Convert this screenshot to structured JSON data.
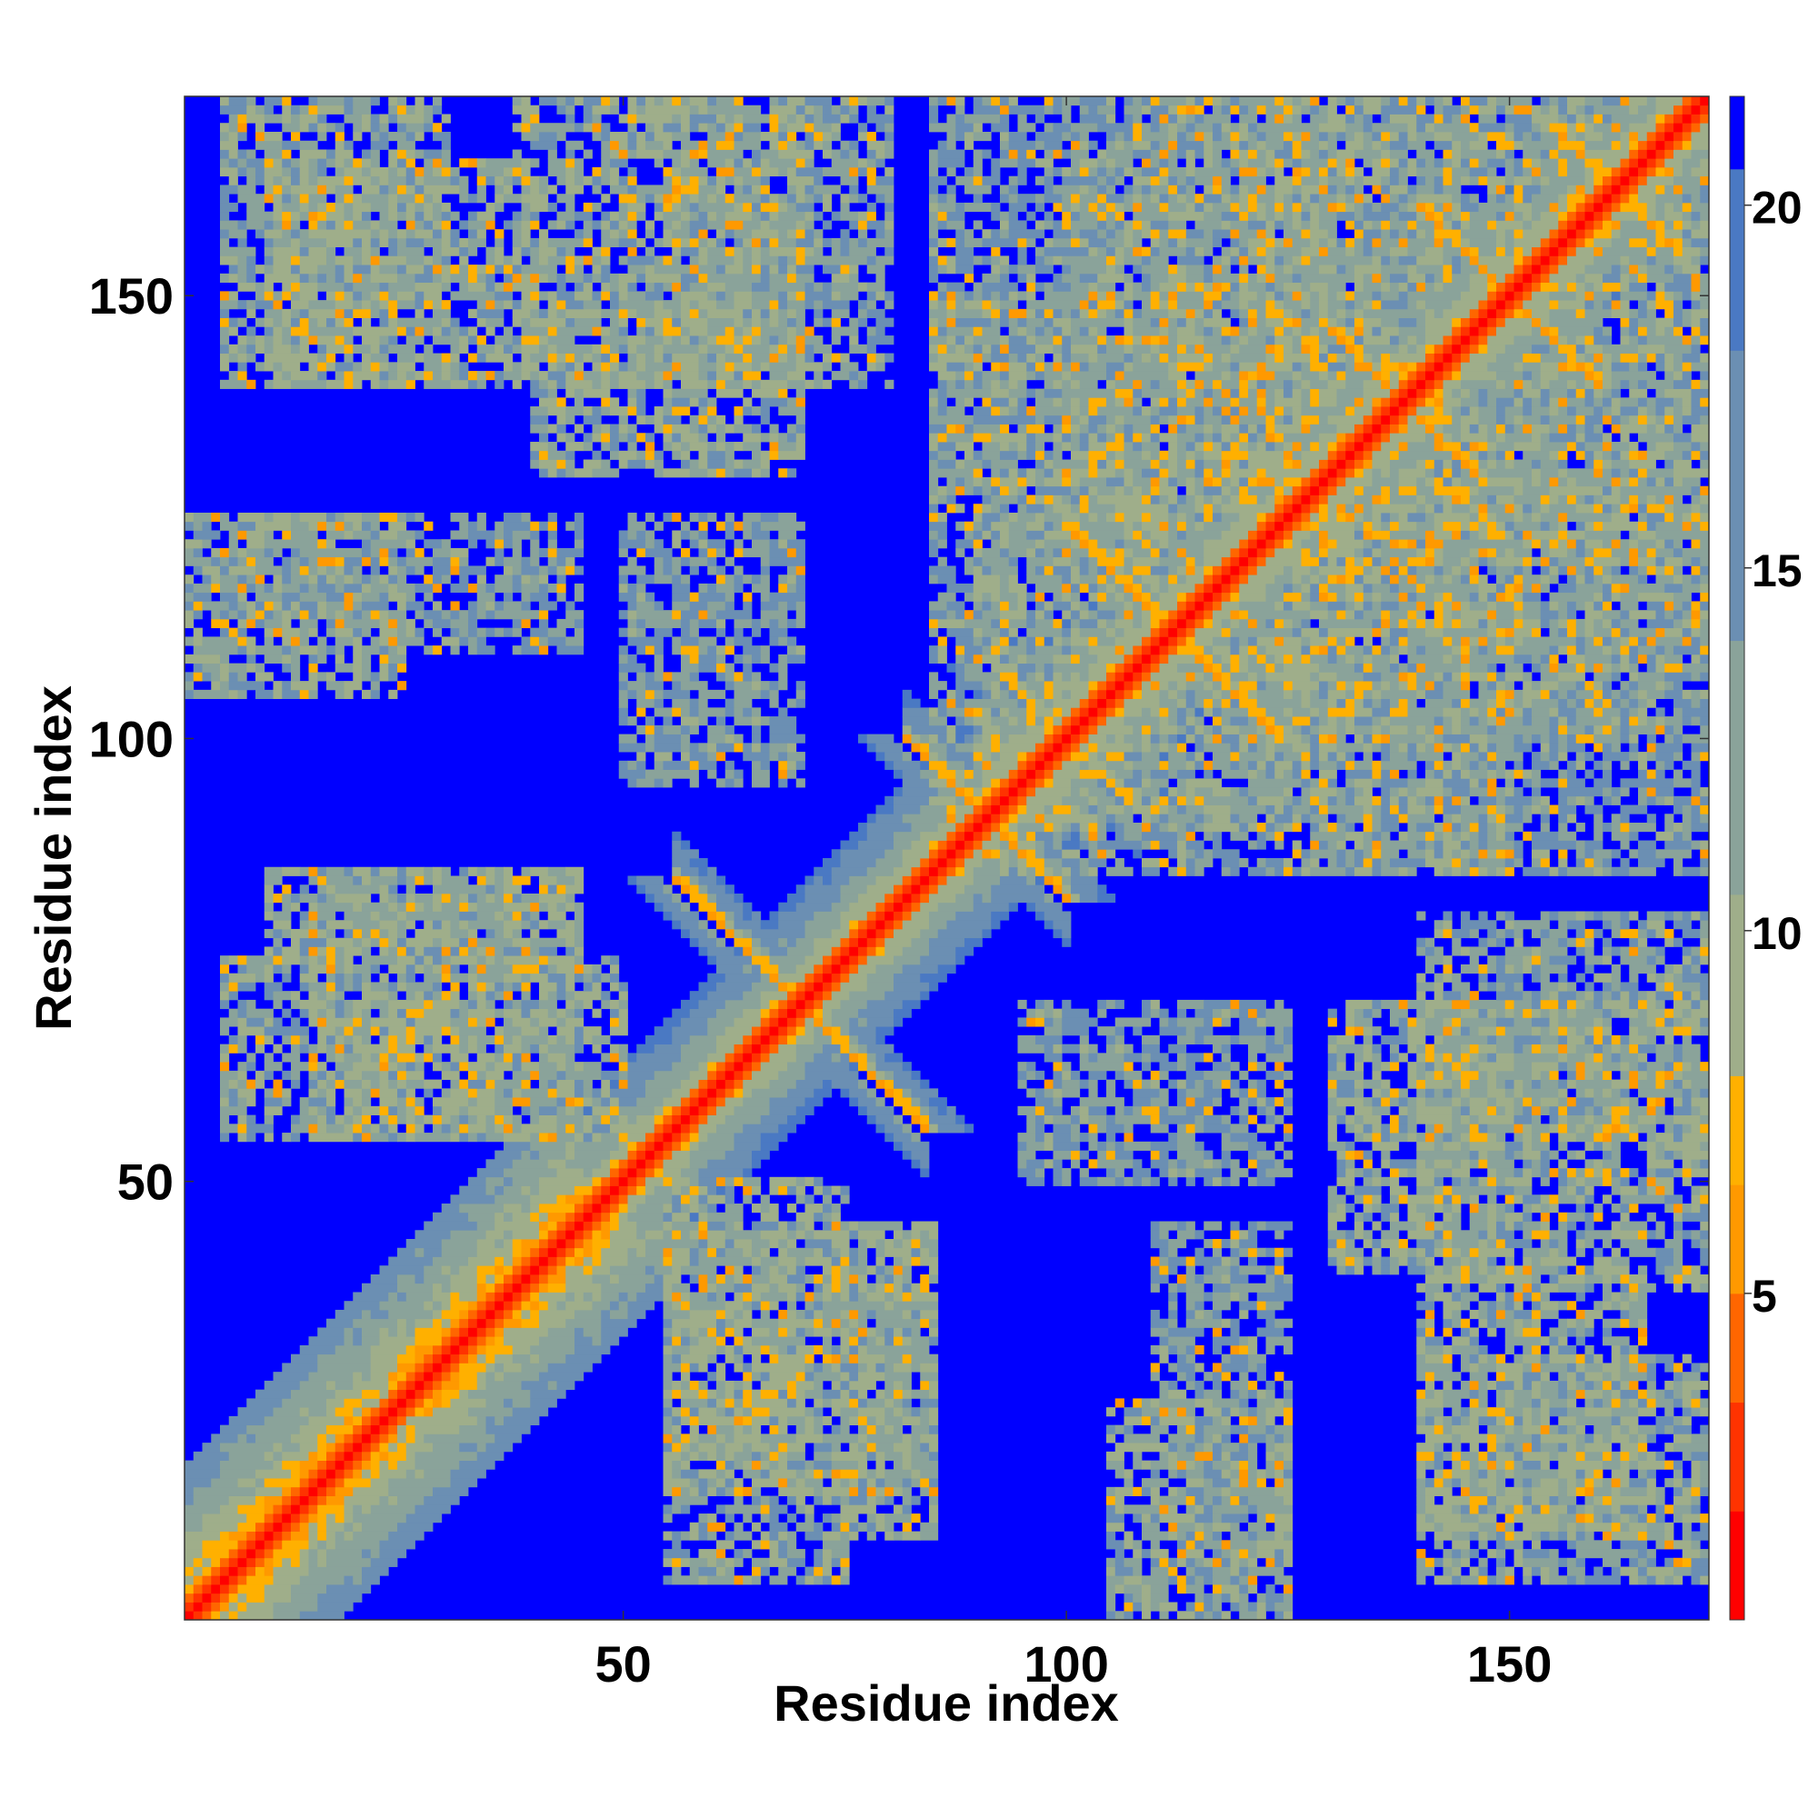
{
  "chart_data": {
    "type": "heatmap",
    "title": "",
    "xlabel": "Residue index",
    "ylabel": "Residue index",
    "n_residues": 172,
    "xlim": [
      1,
      172
    ],
    "ylim": [
      1,
      172
    ],
    "x_ticks": [
      50,
      100,
      150
    ],
    "y_ticks": [
      50,
      100,
      150
    ],
    "colorbar": {
      "ticks": [
        5,
        10,
        15,
        20
      ],
      "range": [
        0.5,
        21.5
      ],
      "colors": [
        "#ff0000",
        "#ff3300",
        "#ff6600",
        "#ff9900",
        "#ffb000",
        "#9fae8a",
        "#8aa39a",
        "#6b8fb3",
        "#4a79c3",
        "#0000ff"
      ],
      "bounds": [
        0.5,
        2,
        3.5,
        5,
        6.5,
        8,
        10.5,
        14,
        18,
        20.5,
        21.5
      ]
    },
    "features": {
      "main_diagonal": {
        "from": 1,
        "to": 172
      },
      "antiparallel_pairs": [
        {
          "center": 70,
          "span": 14,
          "value": 6
        },
        {
          "center": 91,
          "span": 9,
          "value": 6
        },
        {
          "center": 100,
          "span": 8,
          "value": 7
        },
        {
          "center": 112,
          "span": 12,
          "value": 6
        },
        {
          "center": 126,
          "span": 6,
          "value": 7
        },
        {
          "center": 138,
          "span": 9,
          "value": 6
        },
        {
          "center": 150,
          "span": 10,
          "value": 6
        },
        {
          "center": 162,
          "span": 7,
          "value": 6
        }
      ],
      "contact_blocks": [
        {
          "x": [
            5,
            30
          ],
          "y": [
            140,
            172
          ],
          "value": 12
        },
        {
          "x": [
            38,
            70
          ],
          "y": [
            140,
            172
          ],
          "value": 12
        },
        {
          "x": [
            5,
            45
          ],
          "y": [
            110,
            125
          ],
          "value": 14
        },
        {
          "x": [
            15,
            45
          ],
          "y": [
            55,
            85
          ],
          "value": 12
        },
        {
          "x": [
            55,
            75
          ],
          "y": [
            5,
            50
          ],
          "value": 12
        },
        {
          "x": [
            75,
            85
          ],
          "y": [
            10,
            45
          ],
          "value": 12
        },
        {
          "x": [
            95,
            125
          ],
          "y": [
            50,
            70
          ],
          "value": 14
        },
        {
          "x": [
            105,
            125
          ],
          "y": [
            1,
            25
          ],
          "value": 12
        },
        {
          "x": [
            130,
            150
          ],
          "y": [
            40,
            70
          ],
          "value": 12
        },
        {
          "x": [
            140,
            165
          ],
          "y": [
            10,
            40
          ],
          "value": 12
        },
        {
          "x": [
            130,
            172
          ],
          "y": [
            85,
            130
          ],
          "value": 14
        },
        {
          "x": [
            85,
            130
          ],
          "y": [
            90,
            150
          ],
          "value": 13
        },
        {
          "x": [
            100,
            172
          ],
          "y": [
            120,
            172
          ],
          "value": 13
        },
        {
          "x": [
            55,
            80
          ],
          "y": [
            140,
            172
          ],
          "value": 13
        }
      ]
    }
  }
}
